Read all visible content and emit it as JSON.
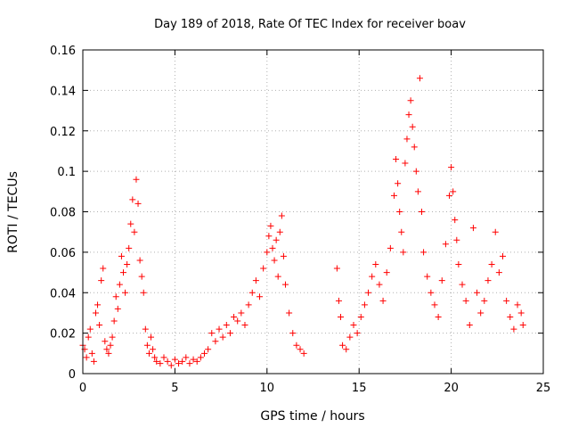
{
  "chart_data": {
    "type": "scatter",
    "title": "Day 189 of 2018, Rate Of TEC Index for receiver boav",
    "xlabel": "GPS time / hours",
    "ylabel": "ROTI / TECUs",
    "xlim": [
      0,
      25
    ],
    "ylim": [
      0,
      0.16
    ],
    "xticks": [
      "0",
      "5",
      "10",
      "15",
      "20",
      "25"
    ],
    "yticks": [
      "0",
      "0.02",
      "0.04",
      "0.06",
      "0.08",
      "0.1",
      "0.12",
      "0.14",
      "0.16"
    ],
    "grid": true,
    "marker": "+",
    "color": "#ff0000",
    "series": [
      {
        "points": [
          [
            0.0,
            0.014
          ],
          [
            0.1,
            0.012
          ],
          [
            0.2,
            0.008
          ],
          [
            0.3,
            0.018
          ],
          [
            0.4,
            0.022
          ],
          [
            0.5,
            0.01
          ],
          [
            0.6,
            0.006
          ],
          [
            0.7,
            0.03
          ],
          [
            0.8,
            0.034
          ],
          [
            0.9,
            0.024
          ],
          [
            1.0,
            0.046
          ],
          [
            1.1,
            0.052
          ],
          [
            1.2,
            0.016
          ],
          [
            1.3,
            0.012
          ],
          [
            1.4,
            0.01
          ],
          [
            1.5,
            0.014
          ],
          [
            1.6,
            0.018
          ],
          [
            1.7,
            0.026
          ],
          [
            1.8,
            0.038
          ],
          [
            1.9,
            0.032
          ],
          [
            2.0,
            0.044
          ],
          [
            2.1,
            0.058
          ],
          [
            2.2,
            0.05
          ],
          [
            2.3,
            0.04
          ],
          [
            2.4,
            0.054
          ],
          [
            2.5,
            0.062
          ],
          [
            2.6,
            0.074
          ],
          [
            2.7,
            0.086
          ],
          [
            2.8,
            0.07
          ],
          [
            2.9,
            0.096
          ],
          [
            3.0,
            0.084
          ],
          [
            3.1,
            0.056
          ],
          [
            3.2,
            0.048
          ],
          [
            3.3,
            0.04
          ],
          [
            3.4,
            0.022
          ],
          [
            3.5,
            0.014
          ],
          [
            3.6,
            0.01
          ],
          [
            3.7,
            0.018
          ],
          [
            3.8,
            0.012
          ],
          [
            3.9,
            0.008
          ],
          [
            4.0,
            0.006
          ],
          [
            4.2,
            0.005
          ],
          [
            4.4,
            0.008
          ],
          [
            4.6,
            0.006
          ],
          [
            4.8,
            0.004
          ],
          [
            5.0,
            0.007
          ],
          [
            5.2,
            0.005
          ],
          [
            5.4,
            0.006
          ],
          [
            5.6,
            0.008
          ],
          [
            5.8,
            0.005
          ],
          [
            6.0,
            0.007
          ],
          [
            6.2,
            0.006
          ],
          [
            6.4,
            0.008
          ],
          [
            6.6,
            0.01
          ],
          [
            6.8,
            0.012
          ],
          [
            7.0,
            0.02
          ],
          [
            7.2,
            0.016
          ],
          [
            7.4,
            0.022
          ],
          [
            7.6,
            0.018
          ],
          [
            7.8,
            0.024
          ],
          [
            8.0,
            0.02
          ],
          [
            8.2,
            0.028
          ],
          [
            8.4,
            0.026
          ],
          [
            8.6,
            0.03
          ],
          [
            8.8,
            0.024
          ],
          [
            9.0,
            0.034
          ],
          [
            9.2,
            0.04
          ],
          [
            9.4,
            0.046
          ],
          [
            9.6,
            0.038
          ],
          [
            9.8,
            0.052
          ],
          [
            10.0,
            0.06
          ],
          [
            10.1,
            0.068
          ],
          [
            10.2,
            0.073
          ],
          [
            10.3,
            0.062
          ],
          [
            10.4,
            0.056
          ],
          [
            10.5,
            0.066
          ],
          [
            10.6,
            0.048
          ],
          [
            10.7,
            0.07
          ],
          [
            10.8,
            0.078
          ],
          [
            10.9,
            0.058
          ],
          [
            11.0,
            0.044
          ],
          [
            11.2,
            0.03
          ],
          [
            11.4,
            0.02
          ],
          [
            11.6,
            0.014
          ],
          [
            11.8,
            0.012
          ],
          [
            12.0,
            0.01
          ],
          [
            13.8,
            0.052
          ],
          [
            13.9,
            0.036
          ],
          [
            14.0,
            0.028
          ],
          [
            14.1,
            0.014
          ],
          [
            14.3,
            0.012
          ],
          [
            14.5,
            0.018
          ],
          [
            14.7,
            0.024
          ],
          [
            14.9,
            0.02
          ],
          [
            15.1,
            0.028
          ],
          [
            15.3,
            0.034
          ],
          [
            15.5,
            0.04
          ],
          [
            15.7,
            0.048
          ],
          [
            15.9,
            0.054
          ],
          [
            16.1,
            0.044
          ],
          [
            16.3,
            0.036
          ],
          [
            16.5,
            0.05
          ],
          [
            16.7,
            0.062
          ],
          [
            16.9,
            0.088
          ],
          [
            17.0,
            0.106
          ],
          [
            17.1,
            0.094
          ],
          [
            17.2,
            0.08
          ],
          [
            17.3,
            0.07
          ],
          [
            17.4,
            0.06
          ],
          [
            17.5,
            0.104
          ],
          [
            17.6,
            0.116
          ],
          [
            17.7,
            0.128
          ],
          [
            17.8,
            0.135
          ],
          [
            17.9,
            0.122
          ],
          [
            18.0,
            0.112
          ],
          [
            18.1,
            0.1
          ],
          [
            18.2,
            0.09
          ],
          [
            18.3,
            0.146
          ],
          [
            18.4,
            0.08
          ],
          [
            18.5,
            0.06
          ],
          [
            18.7,
            0.048
          ],
          [
            18.9,
            0.04
          ],
          [
            19.1,
            0.034
          ],
          [
            19.3,
            0.028
          ],
          [
            19.5,
            0.046
          ],
          [
            19.7,
            0.064
          ],
          [
            19.9,
            0.088
          ],
          [
            20.0,
            0.102
          ],
          [
            20.1,
            0.09
          ],
          [
            20.2,
            0.076
          ],
          [
            20.3,
            0.066
          ],
          [
            20.4,
            0.054
          ],
          [
            20.6,
            0.044
          ],
          [
            20.8,
            0.036
          ],
          [
            21.0,
            0.024
          ],
          [
            21.2,
            0.072
          ],
          [
            21.4,
            0.04
          ],
          [
            21.6,
            0.03
          ],
          [
            21.8,
            0.036
          ],
          [
            22.0,
            0.046
          ],
          [
            22.2,
            0.054
          ],
          [
            22.4,
            0.07
          ],
          [
            22.6,
            0.05
          ],
          [
            22.8,
            0.058
          ],
          [
            23.0,
            0.036
          ],
          [
            23.2,
            0.028
          ],
          [
            23.4,
            0.022
          ],
          [
            23.6,
            0.034
          ],
          [
            23.8,
            0.03
          ],
          [
            23.9,
            0.024
          ]
        ]
      }
    ]
  }
}
